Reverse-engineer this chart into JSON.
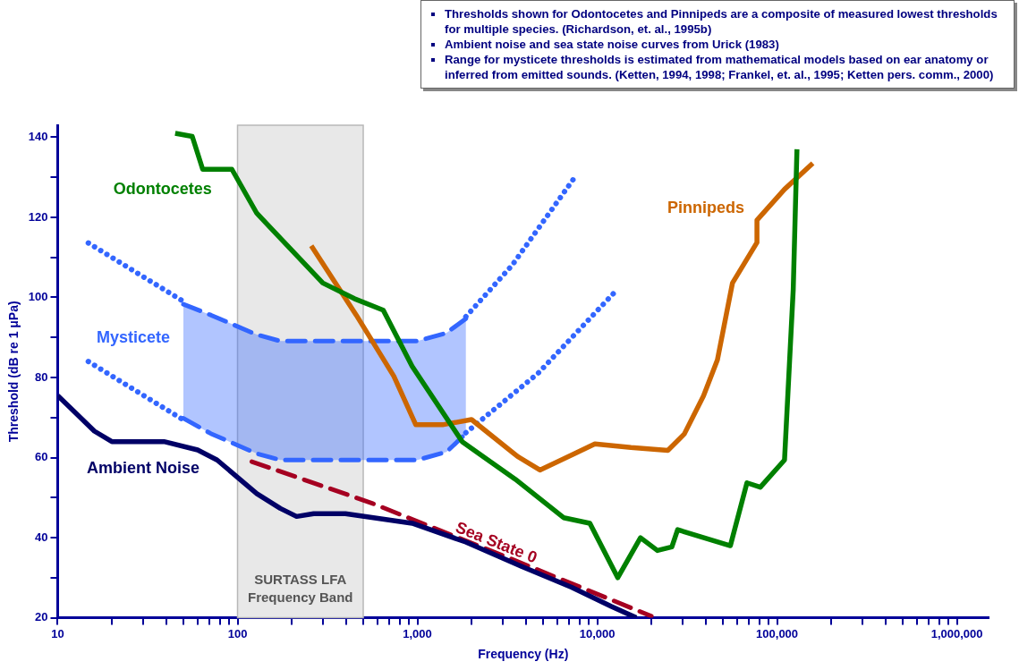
{
  "chart_data": {
    "type": "line",
    "xlabel": "Frequency (Hz)",
    "ylabel": "Threshold (dB re 1 μPa)",
    "log": "x",
    "grid": false,
    "legend": false,
    "marker": "none",
    "xlim": [
      10,
      1500000
    ],
    "ylim": [
      20,
      143
    ],
    "xticks": [
      10,
      {
        "value": 20,
        "label": null
      },
      {
        "value": 30,
        "label": null
      },
      {
        "value": 40,
        "label": null
      },
      {
        "value": 50,
        "label": null
      },
      {
        "value": 60,
        "label": null
      },
      {
        "value": 70,
        "label": null
      },
      {
        "value": 80,
        "label": null
      },
      {
        "value": 90,
        "label": null
      },
      100,
      {
        "value": 200,
        "label": null
      },
      {
        "value": 300,
        "label": null
      },
      {
        "value": 400,
        "label": null
      },
      {
        "value": 500,
        "label": null
      },
      {
        "value": 600,
        "label": null
      },
      {
        "value": 700,
        "label": null
      },
      {
        "value": 800,
        "label": null
      },
      {
        "value": 900,
        "label": null
      },
      {
        "value": 1000,
        "label": "1,000"
      },
      {
        "value": 2000,
        "label": null
      },
      {
        "value": 3000,
        "label": null
      },
      {
        "value": 4000,
        "label": null
      },
      {
        "value": 5000,
        "label": null
      },
      {
        "value": 6000,
        "label": null
      },
      {
        "value": 7000,
        "label": null
      },
      {
        "value": 8000,
        "label": null
      },
      {
        "value": 9000,
        "label": null
      },
      {
        "value": 10000,
        "label": "10,000"
      },
      {
        "value": 20000,
        "label": null
      },
      {
        "value": 30000,
        "label": null
      },
      {
        "value": 40000,
        "label": null
      },
      {
        "value": 50000,
        "label": null
      },
      {
        "value": 60000,
        "label": null
      },
      {
        "value": 70000,
        "label": null
      },
      {
        "value": 80000,
        "label": null
      },
      {
        "value": 90000,
        "label": null
      },
      {
        "value": 100000,
        "label": "100,000"
      },
      {
        "value": 200000,
        "label": null
      },
      {
        "value": 300000,
        "label": null
      },
      {
        "value": 400000,
        "label": null
      },
      {
        "value": 500000,
        "label": null
      },
      {
        "value": 600000,
        "label": null
      },
      {
        "value": 700000,
        "label": null
      },
      {
        "value": 800000,
        "label": null
      },
      {
        "value": 900000,
        "label": null
      },
      {
        "value": 1000000,
        "label": "1,000,000"
      }
    ],
    "yticks": [
      20,
      {
        "value": 30,
        "label": null
      },
      40,
      {
        "value": 50,
        "label": null
      },
      60,
      {
        "value": 70,
        "label": null
      },
      80,
      {
        "value": 90,
        "label": null
      },
      100,
      {
        "value": 110,
        "label": null
      },
      120,
      {
        "value": 130,
        "label": null
      },
      140
    ],
    "bands": [
      {
        "axis": "x",
        "from": 100,
        "to": 500,
        "label": "SURTASS LFA Frequency Band",
        "color": "#e8e8e8"
      }
    ],
    "series": [
      {
        "name": "Ambient Noise",
        "color": "#000066",
        "line_style": "solid",
        "x": [
          10,
          16,
          20,
          39,
          60,
          77,
          128,
          173,
          213,
          265,
          398,
          935,
          1860,
          3800,
          7200,
          12000,
          16500
        ],
        "values": [
          75.5,
          66.6,
          64,
          64,
          61.9,
          59.4,
          51,
          47.3,
          45.3,
          46,
          46,
          43.6,
          38.9,
          32.8,
          27.6,
          22.8,
          20
        ]
      },
      {
        "name": "Sea State 0",
        "color": "#a50021",
        "line_style": "dashed",
        "x": [
          120,
          560,
          3000,
          20000
        ],
        "values": [
          59,
          48.6,
          35.5,
          20.4
        ]
      },
      {
        "name": "Odontocetes",
        "color": "#008000",
        "line_style": "solid",
        "x": [
          45,
          56,
          64,
          93,
          128,
          298,
          446,
          646,
          935,
          1780,
          3500,
          6500,
          9100,
          13000,
          17400,
          21600,
          26000,
          28000,
          55000,
          68000,
          80700,
          110000,
          123000,
          129000
        ],
        "values": [
          141,
          140.2,
          132,
          132,
          121,
          103.6,
          99.7,
          96.8,
          82.8,
          63.9,
          54.6,
          45,
          43.6,
          30,
          40,
          36.8,
          37.7,
          42,
          38,
          53.7,
          52.6,
          59.4,
          102,
          137
        ]
      },
      {
        "name": "Pinnipeds",
        "color": "#cc6600",
        "line_style": "solid",
        "x": [
          257,
          457,
          740,
          980,
          1380,
          2000,
          3600,
          4800,
          7500,
          9700,
          15400,
          24700,
          30500,
          39000,
          46600,
          56500,
          77300,
          77300,
          110000,
          158000
        ],
        "values": [
          112.9,
          95.6,
          80.3,
          68.2,
          68.2,
          69.5,
          60.3,
          56.9,
          61,
          63.4,
          62.5,
          61.8,
          65.9,
          75.4,
          84.4,
          103.6,
          113.7,
          119.3,
          127,
          133.5
        ]
      },
      {
        "name": "Mysticete",
        "color": "#3366ff",
        "line_style": "dashed",
        "x": [
          50,
          71,
          128,
          173,
          1000,
          1450,
          1860
        ],
        "values": [
          98.3,
          95.6,
          90.7,
          89.1,
          89.1,
          91.1,
          94.7
        ],
        "lower": [
          69.8,
          66,
          61,
          59.4,
          59.4,
          61.4,
          66
        ],
        "upper": [
          98.3,
          95.6,
          90.7,
          89.1,
          89.1,
          91.1,
          94.7
        ]
      },
      {
        "color": "#3366ff",
        "line_style": "dashed",
        "x": [
          50,
          71,
          128,
          173,
          1000,
          1450,
          1860
        ],
        "values": [
          69.8,
          66,
          61,
          59.4,
          59.4,
          61.4,
          66
        ]
      },
      {
        "color": "#3366ff",
        "line_style": "dotted",
        "x": [
          14.8,
          50
        ],
        "values": [
          113.6,
          99
        ]
      },
      {
        "color": "#3366ff",
        "line_style": "dotted",
        "x": [
          14.8,
          50
        ],
        "values": [
          84,
          69.4
        ]
      },
      {
        "color": "#3366ff",
        "line_style": "dotted",
        "x": [
          1860,
          3360,
          7500
        ],
        "values": [
          95.2,
          108,
          130
        ]
      },
      {
        "color": "#3366ff",
        "line_style": "dotted",
        "x": [
          1860,
          4700,
          12500
        ],
        "values": [
          66.2,
          81.1,
          101.3
        ]
      }
    ],
    "annotations": [
      "Thresholds shown for Odontocetes and Pinnipeds are a composite of measured lowest thresholds for multiple species. (Richardson, et. al., 1995b)",
      "Ambient noise and sea state noise curves from Urick (1983)",
      "Range for mysticete thresholds is estimated from mathematical models based on ear anatomy or inferred from emitted sounds. (Ketten, 1994, 1998; Frankel, et. al., 1995; Ketten pers. comm., 2000)"
    ]
  }
}
